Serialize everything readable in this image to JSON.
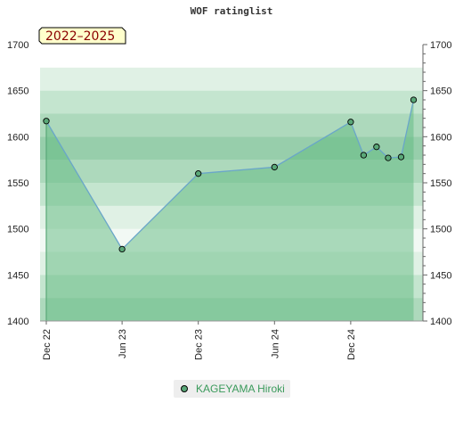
{
  "title": "WOF ratinglist",
  "period_label": "2022–2025",
  "legend": {
    "series_name": "KAGEYAMA Hiroki"
  },
  "chart_data": {
    "type": "area",
    "title": "WOF ratinglist",
    "ylim": [
      1400,
      1700
    ],
    "y_ticks": [
      1400,
      1450,
      1500,
      1550,
      1600,
      1650,
      1700
    ],
    "x_ticks": [
      "Dec 22",
      "Jun 23",
      "Dec 23",
      "Jun 24",
      "Dec 24"
    ],
    "x_tick_dates": [
      "2022-12",
      "2023-06",
      "2023-12",
      "2024-06",
      "2024-12"
    ],
    "series": [
      {
        "name": "KAGEYAMA Hiroki",
        "points": [
          {
            "x": "2022-12",
            "y": 1617
          },
          {
            "x": "2023-06",
            "y": 1478
          },
          {
            "x": "2023-12",
            "y": 1560
          },
          {
            "x": "2024-06",
            "y": 1567
          },
          {
            "x": "2024-12",
            "y": 1616
          },
          {
            "x": "2025-01",
            "y": 1580
          },
          {
            "x": "2025-02",
            "y": 1589
          },
          {
            "x": "2025-03",
            "y": 1577
          },
          {
            "x": "2025-04",
            "y": 1578
          },
          {
            "x": "2025-05",
            "y": 1640
          }
        ]
      }
    ],
    "legend_position": "bottom",
    "colors": {
      "line": "#6aa6c9",
      "marker": "#5aa878",
      "fill": "#5fb97f"
    }
  }
}
